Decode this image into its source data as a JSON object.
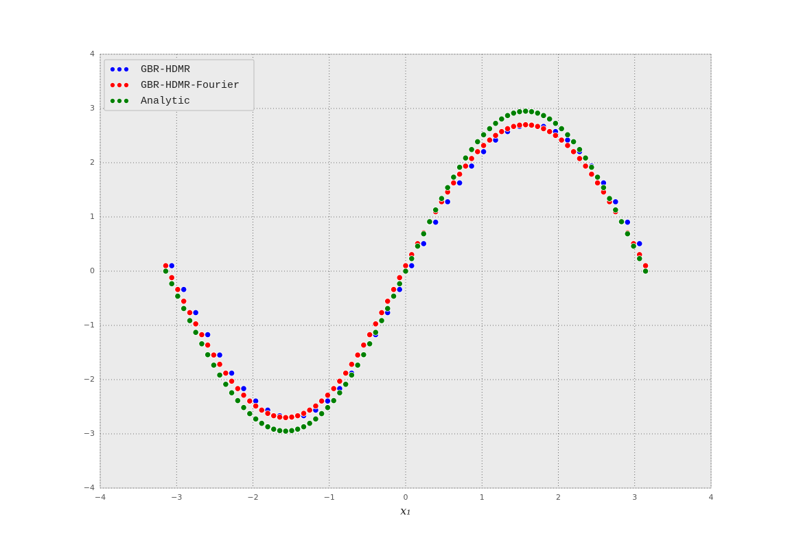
{
  "chart_data": {
    "type": "scatter",
    "x_label": "x₁",
    "x": [
      -3.142,
      -3.063,
      -2.985,
      -2.906,
      -2.827,
      -2.749,
      -2.67,
      -2.592,
      -2.513,
      -2.435,
      -2.356,
      -2.278,
      -2.199,
      -2.121,
      -2.042,
      -1.963,
      -1.885,
      -1.806,
      -1.728,
      -1.649,
      -1.571,
      -1.492,
      -1.414,
      -1.335,
      -1.257,
      -1.178,
      -1.1,
      -1.021,
      -0.942,
      -0.864,
      -0.785,
      -0.707,
      -0.628,
      -0.55,
      -0.471,
      -0.393,
      -0.314,
      -0.236,
      -0.157,
      -0.079,
      0,
      0.079,
      0.157,
      0.236,
      0.314,
      0.393,
      0.471,
      0.55,
      0.628,
      0.707,
      0.785,
      0.864,
      0.942,
      1.021,
      1.1,
      1.178,
      1.257,
      1.335,
      1.414,
      1.492,
      1.571,
      1.649,
      1.728,
      1.806,
      1.885,
      1.963,
      2.042,
      2.121,
      2.199,
      2.278,
      2.356,
      2.435,
      2.513,
      2.592,
      2.67,
      2.749,
      2.827,
      2.906,
      2.985,
      3.063,
      3.142
    ],
    "series": [
      {
        "name": "GBR-HDMR",
        "color": "#0000ff",
        "values": [
          0.1,
          0.1,
          -0.338,
          -0.338,
          -0.765,
          -0.765,
          -1.171,
          -1.171,
          -1.546,
          -1.546,
          -1.88,
          -1.88,
          -2.165,
          -2.165,
          -2.395,
          -2.395,
          -2.563,
          -2.563,
          -2.666,
          -2.666,
          -2.7,
          -2.7,
          -2.666,
          -2.666,
          -2.563,
          -2.563,
          -2.395,
          -2.395,
          -2.165,
          -2.165,
          -1.88,
          -1.88,
          -1.546,
          -1.546,
          -1.171,
          -1.171,
          -0.765,
          -0.765,
          -0.338,
          -0.338,
          0.1,
          0.1,
          0.507,
          0.507,
          0.903,
          0.903,
          1.28,
          1.28,
          1.628,
          1.628,
          1.938,
          1.938,
          2.203,
          2.203,
          2.417,
          2.417,
          2.573,
          2.573,
          2.668,
          2.668,
          2.7,
          2.7,
          2.668,
          2.668,
          2.573,
          2.573,
          2.417,
          2.417,
          2.203,
          2.203,
          1.938,
          1.938,
          1.628,
          1.628,
          1.28,
          1.28,
          0.903,
          0.903,
          0.507,
          0.507,
          0.1
        ]
      },
      {
        "name": "GBR-HDMR-Fourier",
        "color": "#ff0000",
        "values": [
          0.1,
          -0.12,
          -0.338,
          -0.554,
          -0.765,
          -0.972,
          -1.171,
          -1.363,
          -1.546,
          -1.718,
          -1.88,
          -2.029,
          -2.165,
          -2.287,
          -2.395,
          -2.487,
          -2.563,
          -2.623,
          -2.666,
          -2.691,
          -2.7,
          -2.691,
          -2.666,
          -2.623,
          -2.563,
          -2.487,
          -2.395,
          -2.287,
          -2.165,
          -2.029,
          -1.88,
          -1.718,
          -1.546,
          -1.363,
          -1.171,
          -0.972,
          -0.765,
          -0.554,
          -0.338,
          -0.12,
          0.1,
          0.304,
          0.507,
          0.707,
          0.903,
          1.095,
          1.28,
          1.459,
          1.628,
          1.788,
          1.938,
          2.077,
          2.203,
          2.317,
          2.417,
          2.502,
          2.573,
          2.628,
          2.668,
          2.692,
          2.7,
          2.692,
          2.668,
          2.628,
          2.573,
          2.502,
          2.417,
          2.317,
          2.203,
          2.077,
          1.938,
          1.788,
          1.628,
          1.459,
          1.28,
          1.095,
          0.903,
          0.707,
          0.507,
          0.304,
          0.1
        ]
      },
      {
        "name": "Analytic",
        "color": "#008000",
        "values": [
          0,
          -0.232,
          -0.461,
          -0.689,
          -0.912,
          -1.129,
          -1.339,
          -1.541,
          -1.734,
          -1.916,
          -2.086,
          -2.243,
          -2.387,
          -2.515,
          -2.628,
          -2.726,
          -2.806,
          -2.869,
          -2.914,
          -2.941,
          -2.95,
          -2.941,
          -2.914,
          -2.869,
          -2.806,
          -2.726,
          -2.628,
          -2.515,
          -2.387,
          -2.243,
          -2.086,
          -1.916,
          -1.734,
          -1.541,
          -1.339,
          -1.129,
          -0.912,
          -0.689,
          -0.461,
          -0.232,
          0,
          0.232,
          0.461,
          0.689,
          0.912,
          1.129,
          1.339,
          1.541,
          1.734,
          1.916,
          2.086,
          2.243,
          2.387,
          2.515,
          2.628,
          2.726,
          2.806,
          2.869,
          2.914,
          2.941,
          2.95,
          2.941,
          2.914,
          2.869,
          2.806,
          2.726,
          2.628,
          2.515,
          2.387,
          2.243,
          2.086,
          1.916,
          1.734,
          1.541,
          1.339,
          1.129,
          0.912,
          0.689,
          0.461,
          0.232,
          0
        ]
      }
    ],
    "xlim": [
      -4,
      4
    ],
    "ylim": [
      -4,
      4
    ],
    "xticks": [
      {
        "value": -4,
        "label": "−4"
      },
      {
        "value": -3,
        "label": "−3"
      },
      {
        "value": -2,
        "label": "−2"
      },
      {
        "value": -1,
        "label": "−1"
      },
      0,
      1,
      2,
      3,
      4
    ],
    "yticks": [
      {
        "value": -4,
        "label": "−4"
      },
      {
        "value": -3,
        "label": "−3"
      },
      {
        "value": -2,
        "label": "−2"
      },
      {
        "value": -1,
        "label": "−1"
      },
      0,
      1,
      2,
      3,
      4
    ],
    "grid": true,
    "legend": "upper left"
  }
}
